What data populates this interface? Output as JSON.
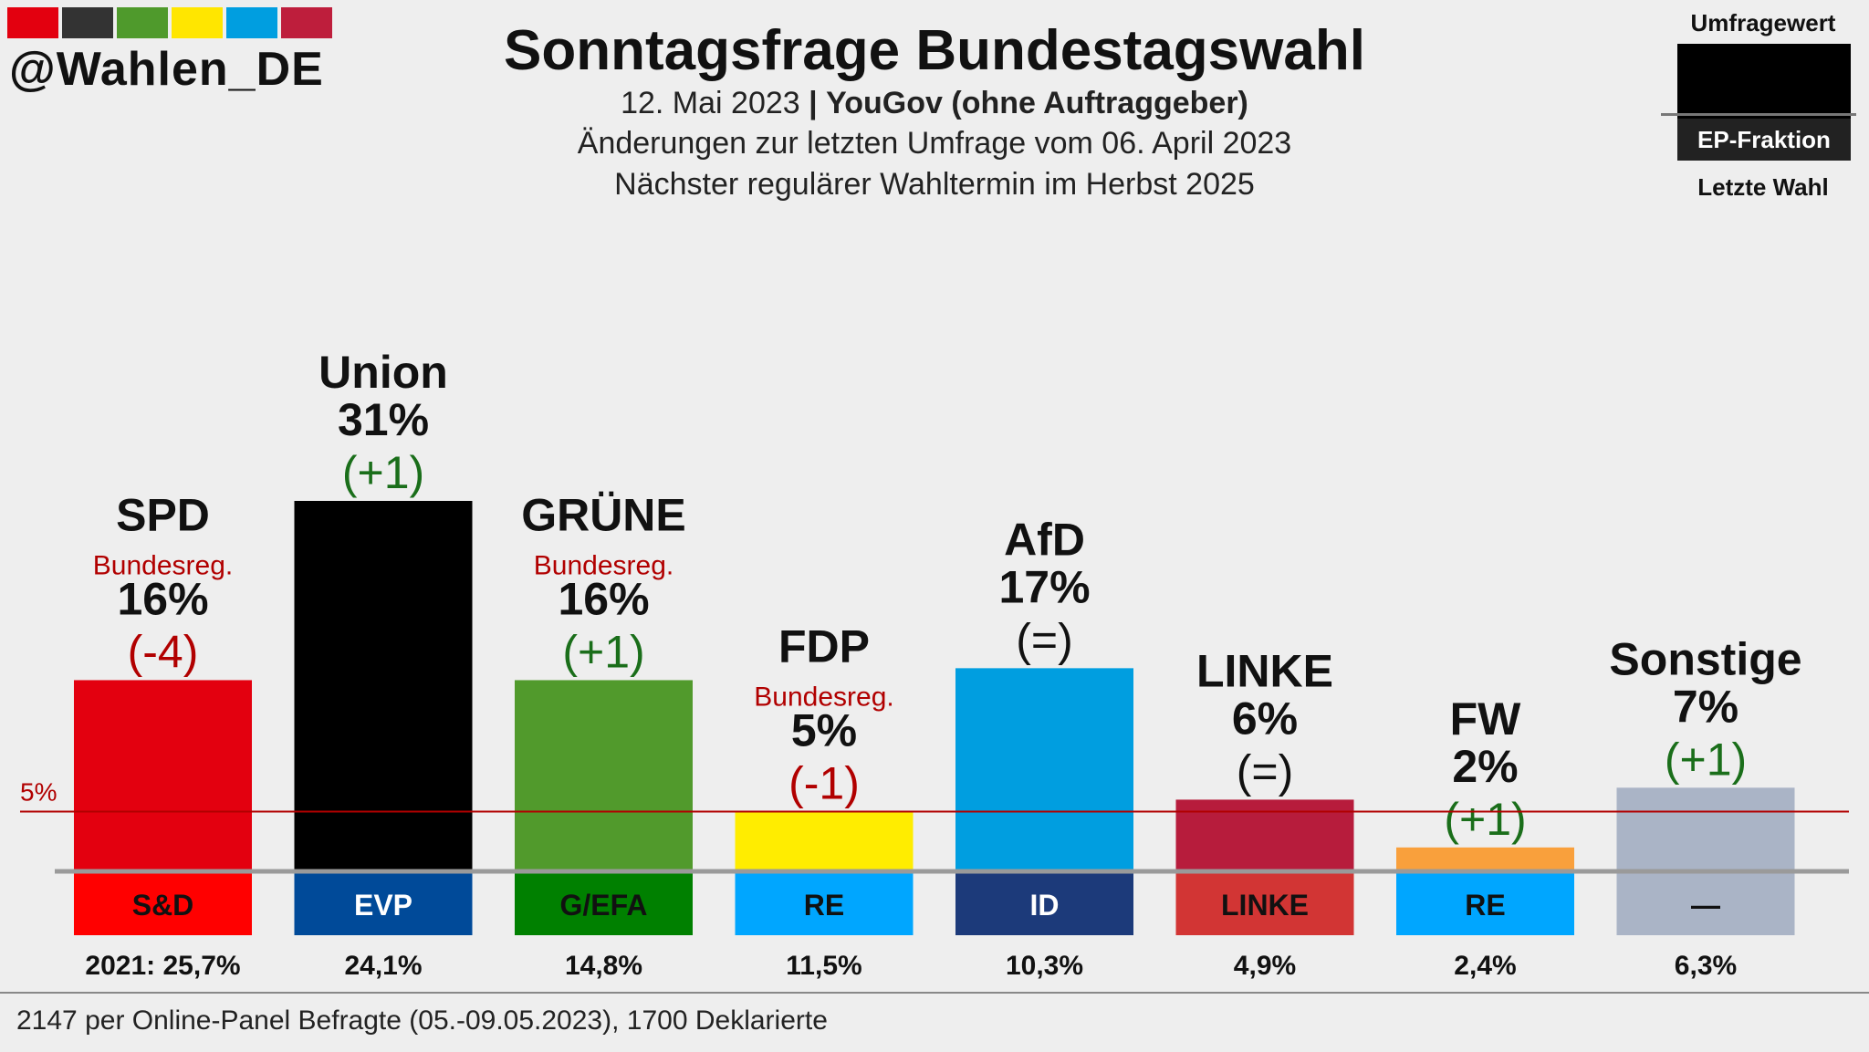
{
  "header": {
    "handle": "@Wahlen_DE",
    "title": "Sonntagsfrage Bundestagswahl",
    "date": "12. Mai 2023",
    "separator": "|",
    "institute": "YouGov (ohne Auftraggeber)",
    "subtitle2": "Änderungen zur letzten Umfrage vom 06. April 2023",
    "subtitle3": "Nächster regulärer Wahltermin im Herbst 2025",
    "swatch_colors": [
      "#e3000f",
      "#333333",
      "#4f9a2c",
      "#ffe600",
      "#009ee0",
      "#be1e3c"
    ]
  },
  "legend": {
    "top_label": "Umfragewert",
    "ep_label": "EP-Fraktion",
    "bottom_label": "Letzte Wahl"
  },
  "chart_data": {
    "type": "bar",
    "ylim": [
      0,
      31
    ],
    "threshold_value": 5,
    "threshold_label": "5%",
    "categories": [
      "SPD",
      "Union",
      "GRÜNE",
      "FDP",
      "AfD",
      "LINKE",
      "FW",
      "Sonstige"
    ],
    "values": [
      16,
      31,
      16,
      5,
      17,
      6,
      2,
      7
    ],
    "value_labels": [
      "16%",
      "31%",
      "16%",
      "5%",
      "17%",
      "6%",
      "2%",
      "7%"
    ],
    "changes": [
      "(-4)",
      "(+1)",
      "(+1)",
      "(-1)",
      "(=)",
      "(=)",
      "(+1)",
      "(+1)"
    ],
    "change_colors": [
      "#b10000",
      "#1a6e1a",
      "#1a6e1a",
      "#b10000",
      "#111111",
      "#111111",
      "#1a6e1a",
      "#1a6e1a"
    ],
    "government_label": "Bundesreg.",
    "government": [
      true,
      false,
      true,
      true,
      false,
      false,
      false,
      false
    ],
    "bar_colors": [
      "#e3000f",
      "#000000",
      "#519a2c",
      "#ffed00",
      "#009ee0",
      "#b71c3c",
      "#f9a03c",
      "#aab4c6"
    ],
    "ep_groups": [
      "S&D",
      "EVP",
      "G/EFA",
      "RE",
      "ID",
      "LINKE",
      "RE",
      "—"
    ],
    "ep_colors": [
      "#ff0000",
      "#004a99",
      "#008000",
      "#00a6ff",
      "#1c3a7a",
      "#d23534",
      "#00a6ff",
      "#aab4c6"
    ],
    "last_election": [
      "2021: 25,7%",
      "24,1%",
      "14,8%",
      "11,5%",
      "10,3%",
      "4,9%",
      "2,4%",
      "6,3%"
    ]
  },
  "footer": {
    "note": "2147 per Online-Panel Befragte (05.-09.05.2023), 1700 Deklarierte"
  }
}
